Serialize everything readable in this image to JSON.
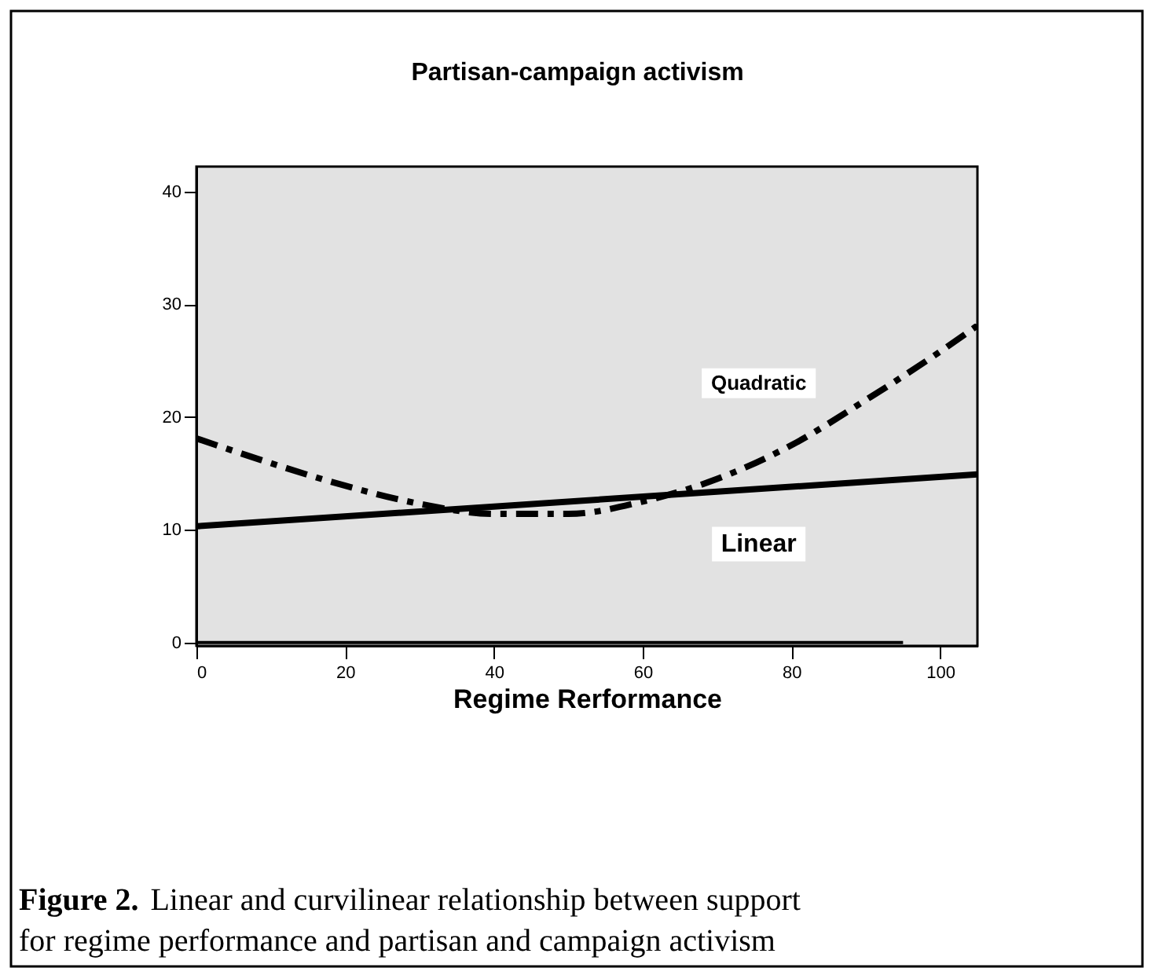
{
  "chart_data": {
    "type": "line",
    "title": "Partisan-campaign activism",
    "xlabel": "Regime Rerformance",
    "xlim": [
      0,
      105
    ],
    "ylim": [
      -0.3,
      42.2
    ],
    "xticks": [
      0,
      20,
      40,
      60,
      80,
      100
    ],
    "yticks": [
      0,
      10,
      20,
      30,
      40
    ],
    "grid": false,
    "legend": false,
    "marker": "none",
    "series": [
      {
        "name": "Quadratic",
        "color": "#000000",
        "line_style": "dashed",
        "x": [
          0,
          10,
          20,
          30,
          40,
          50,
          60,
          70,
          80,
          90,
          100,
          105
        ],
        "values": [
          18.1,
          15.9,
          13.9,
          12.3,
          11.4,
          11.4,
          12.5,
          14.5,
          17.5,
          21.5,
          25.8,
          28.1
        ]
      },
      {
        "name": "Linear",
        "color": "#000000",
        "line_style": "solid",
        "x": [
          0,
          105
        ],
        "values": [
          10.3,
          14.9
        ]
      },
      {
        "color": "#000000",
        "line_style": "solid",
        "x": [
          0,
          95
        ],
        "values": [
          0,
          0
        ]
      }
    ],
    "annotations": [
      "Figure 2.",
      "Linear and curvilinear relationship between support for regime performance and partisan and campaign activism"
    ]
  }
}
